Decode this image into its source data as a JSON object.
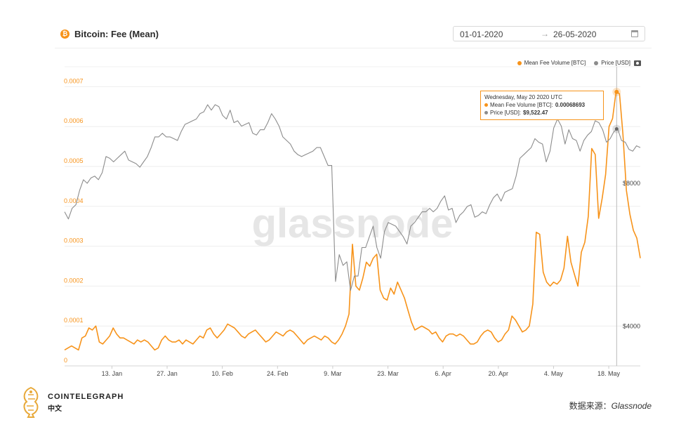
{
  "header": {
    "title": "Bitcoin: Fee (Mean)",
    "icon": "bitcoin-icon"
  },
  "date_range": {
    "start": "01-01-2020",
    "arrow": "→",
    "end": "26-05-2020",
    "icon": "calendar-icon"
  },
  "legend": [
    {
      "label": "Mean Fee Volume [BTC]",
      "color": "#f7931a"
    },
    {
      "label": "Price [USD]",
      "color": "#8c8c8c"
    }
  ],
  "tooltip": {
    "date": "Wednesday, May 20 2020 UTC",
    "fee_label": "Mean Fee Volume [BTC]:",
    "fee_value": "0.00068693",
    "price_label": "Price [USD]:",
    "price_value": "$9,522.47"
  },
  "watermark": "glassnode",
  "brand": {
    "name": "COINTELEGRAPH",
    "sub": "中文"
  },
  "source": {
    "prefix": "数据来源：",
    "name": "Glassnode"
  },
  "chart_data": {
    "type": "line",
    "title": "Bitcoin: Fee (Mean)",
    "x_range": [
      "2020-01-01",
      "2020-05-26"
    ],
    "x_tick_labels": [
      "13. Jan",
      "27. Jan",
      "10. Feb",
      "24. Feb",
      "9. Mar",
      "23. Mar",
      "6. Apr",
      "20. Apr",
      "4. May",
      "18. May"
    ],
    "y_left": {
      "ticks": [
        "0",
        "0.0001",
        "0.0002",
        "0.0003",
        "0.0004",
        "0.0005",
        "0.0006",
        "0.0007"
      ],
      "range": [
        0,
        0.00075
      ],
      "color": "#f7931a"
    },
    "y_right": {
      "ticks": [
        "$4000",
        "$8000"
      ],
      "range": [
        2885,
        11265
      ],
      "color": "#8c8c8c"
    },
    "grid": true,
    "legend_position": "top-right",
    "series": [
      {
        "name": "Mean Fee Volume [BTC]",
        "axis": "left",
        "color": "#f7931a",
        "values": [
          4e-05,
          4.5e-05,
          5e-05,
          4.5e-05,
          4e-05,
          7e-05,
          7.5e-05,
          9.5e-05,
          9e-05,
          0.0001,
          6e-05,
          5.5e-05,
          6.5e-05,
          7.5e-05,
          9.5e-05,
          8e-05,
          7e-05,
          7e-05,
          6.5e-05,
          6e-05,
          5.5e-05,
          6.5e-05,
          6e-05,
          6.5e-05,
          6e-05,
          5e-05,
          4e-05,
          4.5e-05,
          6.5e-05,
          7.5e-05,
          6.5e-05,
          6e-05,
          6e-05,
          6.5e-05,
          5.5e-05,
          6.5e-05,
          6e-05,
          5.5e-05,
          6.5e-05,
          7.5e-05,
          7e-05,
          9e-05,
          9.5e-05,
          8e-05,
          7e-05,
          8e-05,
          9e-05,
          0.000105,
          0.0001,
          9.5e-05,
          8.5e-05,
          7.5e-05,
          7e-05,
          8e-05,
          8.5e-05,
          9e-05,
          8e-05,
          7e-05,
          6e-05,
          6.5e-05,
          7.5e-05,
          8.5e-05,
          8e-05,
          7.5e-05,
          8.5e-05,
          9e-05,
          8.5e-05,
          7.5e-05,
          6.5e-05,
          5.5e-05,
          6.5e-05,
          7e-05,
          7.5e-05,
          7e-05,
          6.5e-05,
          7.5e-05,
          7e-05,
          6e-05,
          5.5e-05,
          6.5e-05,
          8e-05,
          0.0001,
          0.00013,
          0.000305,
          0.0002,
          0.00019,
          0.00022,
          0.00026,
          0.00025,
          0.00027,
          0.00028,
          0.00019,
          0.00017,
          0.000165,
          0.000195,
          0.00018,
          0.00021,
          0.00019,
          0.00017,
          0.00014,
          0.00011,
          9e-05,
          9.5e-05,
          0.0001,
          9.5e-05,
          9e-05,
          8e-05,
          8.5e-05,
          7e-05,
          6e-05,
          7.5e-05,
          8e-05,
          8e-05,
          7.5e-05,
          8e-05,
          7.5e-05,
          6.5e-05,
          5.5e-05,
          5.5e-05,
          6e-05,
          7.5e-05,
          8.5e-05,
          9e-05,
          8.5e-05,
          7e-05,
          6e-05,
          6.5e-05,
          8e-05,
          9e-05,
          0.000125,
          0.000115,
          0.0001,
          8.5e-05,
          9e-05,
          0.0001,
          0.000155,
          0.000335,
          0.00033,
          0.000235,
          0.00021,
          0.0002,
          0.00021,
          0.000205,
          0.000215,
          0.000245,
          0.000325,
          0.00026,
          0.00023,
          0.0002,
          0.000285,
          0.00031,
          0.000375,
          0.000545,
          0.00053,
          0.00037,
          0.00042,
          0.00048,
          0.0006,
          0.00062,
          0.000687,
          0.000682,
          0.00058,
          0.00044,
          0.00038,
          0.00034,
          0.00032,
          0.00027
        ]
      },
      {
        "name": "Price [USD]",
        "axis": "right",
        "color": "#8c8c8c",
        "values": [
          7200,
          7000,
          7300,
          7400,
          7800,
          8100,
          8000,
          8150,
          8200,
          8100,
          8300,
          8750,
          8700,
          8600,
          8700,
          8800,
          8900,
          8650,
          8600,
          8550,
          8450,
          8600,
          8750,
          9000,
          9300,
          9300,
          9400,
          9300,
          9300,
          9250,
          9200,
          9450,
          9650,
          9700,
          9750,
          9800,
          9950,
          10000,
          10200,
          10050,
          10200,
          10150,
          9900,
          9800,
          10050,
          9700,
          9750,
          9600,
          9650,
          9700,
          9400,
          9350,
          9500,
          9500,
          9700,
          9950,
          9800,
          9600,
          9300,
          9200,
          9100,
          8900,
          8800,
          8750,
          8800,
          8850,
          8900,
          9000,
          9000,
          8750,
          8500,
          8500,
          5250,
          6000,
          5700,
          5800,
          5000,
          5400,
          5400,
          6200,
          6200,
          6500,
          6800,
          6200,
          5900,
          6650,
          6900,
          6850,
          6800,
          6650,
          6500,
          6300,
          6800,
          6900,
          7050,
          7200,
          7200,
          7300,
          7200,
          7300,
          7500,
          7650,
          7250,
          7300,
          6900,
          7100,
          7200,
          7350,
          7400,
          7050,
          7100,
          7200,
          7150,
          7400,
          7600,
          7700,
          7500,
          7750,
          7800,
          7850,
          8200,
          8700,
          8800,
          8900,
          9000,
          9250,
          9150,
          9100,
          8600,
          8900,
          9550,
          9800,
          9600,
          9100,
          9500,
          9250,
          9200,
          8900,
          9200,
          9350,
          9450,
          9750,
          9700,
          9500,
          9150,
          9250,
          9450,
          9522,
          9200,
          9150,
          8950,
          8900,
          9050,
          9000
        ]
      }
    ]
  }
}
